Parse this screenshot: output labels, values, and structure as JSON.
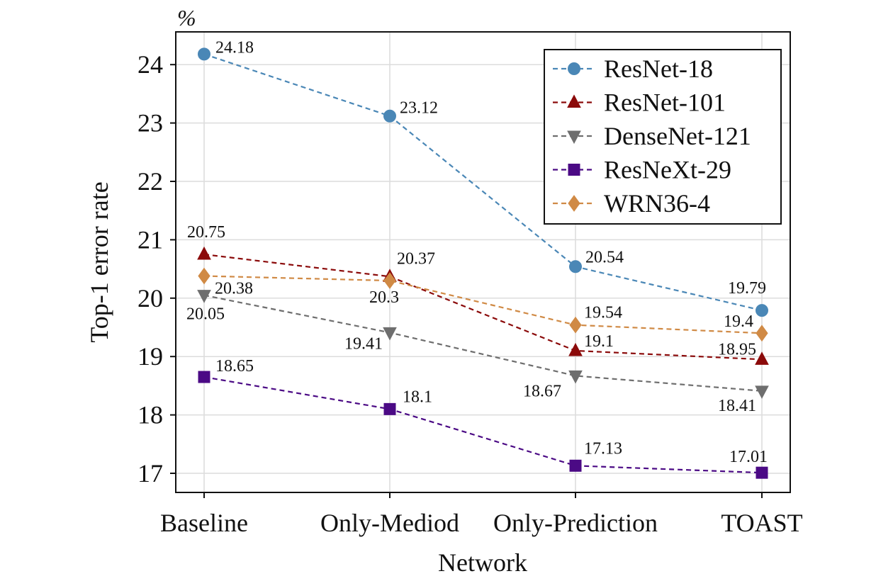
{
  "chart_data": {
    "type": "line",
    "categories": [
      "Baseline",
      "Only-Mediod",
      "Only-Prediction",
      "TOAST"
    ],
    "xlabel": "Network",
    "ylabel": "Top-1 error rate",
    "unit_label": "%",
    "ylim": [
      16.7,
      24.5
    ],
    "yticks": [
      17,
      18,
      19,
      20,
      21,
      22,
      23,
      24
    ],
    "grid": true,
    "legend_position": "top-right",
    "series": [
      {
        "name": "ResNet-18",
        "color": "#4a87b6",
        "marker": "circle",
        "values": [
          24.18,
          23.12,
          20.54,
          19.79
        ],
        "labels": [
          "24.18",
          "23.12",
          "20.54",
          "19.79"
        ]
      },
      {
        "name": "ResNet-101",
        "color": "#8b0a0a",
        "marker": "triangle-up",
        "values": [
          20.75,
          20.37,
          19.1,
          18.95
        ],
        "labels": [
          "20.75",
          "20.37",
          "19.1",
          "18.95"
        ]
      },
      {
        "name": "DenseNet-121",
        "color": "#6e6e6e",
        "marker": "triangle-down",
        "values": [
          20.05,
          19.41,
          18.67,
          18.41
        ],
        "labels": [
          "20.05",
          "19.41",
          "18.67",
          "18.41"
        ]
      },
      {
        "name": "ResNeXt-29",
        "color": "#4b0a85",
        "marker": "square",
        "values": [
          18.65,
          18.1,
          17.13,
          17.01
        ],
        "labels": [
          "18.65",
          "18.1",
          "17.13",
          "17.01"
        ]
      },
      {
        "name": "WRN36-4",
        "color": "#d08a45",
        "marker": "diamond",
        "values": [
          20.38,
          20.3,
          19.54,
          19.4
        ],
        "labels": [
          "20.38",
          "20.3",
          "19.54",
          "19.4"
        ]
      }
    ]
  }
}
